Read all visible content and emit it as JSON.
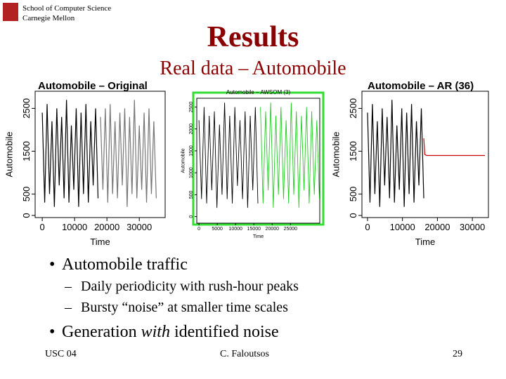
{
  "header": {
    "school": "School of Computer Science",
    "university": "Carnegie Mellon",
    "title": "Results",
    "subtitle": "Real data – Automobile"
  },
  "chart_data": [
    {
      "type": "line",
      "title": "Automobile – Original",
      "x_label": "Time",
      "y_label": "Automobile",
      "xlim": [
        -2200,
        38000
      ],
      "xticks": [
        0,
        10000,
        20000,
        30000
      ],
      "ylim": [
        -50,
        2900
      ],
      "yticks": [
        0,
        500,
        1500,
        2500
      ],
      "series": [
        {
          "color": "#000000",
          "x": [
            0,
            750,
            1500,
            2250,
            3000,
            3750,
            4500,
            5250,
            6000,
            6750,
            7500,
            8250,
            9000,
            9750,
            10500,
            11250,
            12000,
            12750,
            13500,
            14250,
            15000,
            15750,
            16500,
            17250
          ],
          "values": [
            2400,
            300,
            2600,
            500,
            2200,
            200,
            2500,
            700,
            2300,
            400,
            2700,
            300,
            2100,
            600,
            2500,
            200,
            2400,
            500,
            2600,
            300,
            2200,
            700,
            2500,
            400
          ]
        },
        {
          "color": "#777777",
          "x": [
            18000,
            18750,
            19500,
            20250,
            21000,
            21750,
            22500,
            23250,
            24000,
            24750,
            25500,
            26250,
            27000,
            27750,
            28500,
            29250,
            30000,
            30750,
            31500,
            32250,
            33000,
            33750,
            34500,
            35250
          ],
          "values": [
            2300,
            600,
            2500,
            300,
            2600,
            500,
            2200,
            400,
            2400,
            700,
            2500,
            200,
            2300,
            500,
            2700,
            400,
            2100,
            600,
            2400,
            300,
            2500,
            500,
            2200,
            400
          ]
        }
      ]
    },
    {
      "type": "line",
      "title": "Automobile – AWSOM (3)",
      "x_label": "Time",
      "y_label": "Automobile",
      "xlim": [
        -600,
        33000
      ],
      "xticks": [
        0,
        5000,
        10000,
        15000,
        20000,
        25000
      ],
      "ylim": [
        -150,
        2700
      ],
      "yticks": [
        0,
        500,
        1000,
        1500,
        2000,
        2500
      ],
      "series": [
        {
          "color": "#000000",
          "x": [
            0,
            700,
            1400,
            2100,
            2800,
            3500,
            4200,
            4900,
            5600,
            6300,
            7000,
            7700,
            8400,
            9100,
            9800,
            10500,
            11200,
            11900,
            12600,
            13300,
            14000,
            14700,
            15400,
            16100
          ],
          "values": [
            2200,
            400,
            2500,
            300,
            2300,
            600,
            2400,
            200,
            2100,
            500,
            2600,
            400,
            2300,
            300,
            2500,
            700,
            2200,
            400,
            2400,
            200,
            2300,
            600,
            2500,
            300
          ]
        },
        {
          "color": "#22cc22",
          "x": [
            16800,
            17500,
            18200,
            18900,
            19600,
            20300,
            21000,
            21700,
            22400,
            23100,
            23800,
            24500,
            25200,
            25900,
            26600,
            27300,
            28000,
            28700,
            29400,
            30100,
            30800,
            31500,
            32200,
            32900
          ],
          "values": [
            2500,
            300,
            2400,
            600,
            2600,
            200,
            2300,
            500,
            2500,
            400,
            2200,
            300,
            2600,
            500,
            2400,
            200,
            2300,
            600,
            2500,
            300,
            2400,
            500,
            2200,
            400
          ]
        }
      ]
    },
    {
      "type": "line",
      "title": "Automobile – AR (36)",
      "x_label": "Time",
      "y_label": "Automobile",
      "xlim": [
        -1600,
        34600
      ],
      "xticks": [
        0,
        10000,
        20000,
        30000
      ],
      "ylim": [
        -50,
        2900
      ],
      "yticks": [
        0,
        500,
        1500,
        2500
      ],
      "series": [
        {
          "color": "#000000",
          "x": [
            0,
            700,
            1400,
            2100,
            2800,
            3500,
            4200,
            4900,
            5600,
            6300,
            7000,
            7700,
            8400,
            9100,
            9800,
            10500,
            11200,
            11900,
            12600,
            13300,
            14000,
            14700,
            15400,
            16100
          ],
          "values": [
            2400,
            300,
            2600,
            500,
            2200,
            200,
            2500,
            700,
            2300,
            400,
            2700,
            300,
            2100,
            600,
            2500,
            200,
            2400,
            500,
            2600,
            300,
            2200,
            700,
            2500,
            400
          ]
        },
        {
          "color": "#cc0000",
          "x": [
            16100,
            16400,
            17000,
            25000,
            33600
          ],
          "values": [
            1800,
            1420,
            1400,
            1400,
            1400
          ]
        }
      ]
    }
  ],
  "bullets": [
    {
      "text": "Automobile traffic",
      "sub": [
        "Daily periodicity with rush-hour peaks",
        "Bursty “noise” at smaller time scales"
      ]
    },
    {
      "parts": [
        "Generation ",
        "with",
        " identified noise"
      ]
    }
  ],
  "footer": {
    "left": "USC 04",
    "center": "C. Faloutsos",
    "right": "29"
  }
}
